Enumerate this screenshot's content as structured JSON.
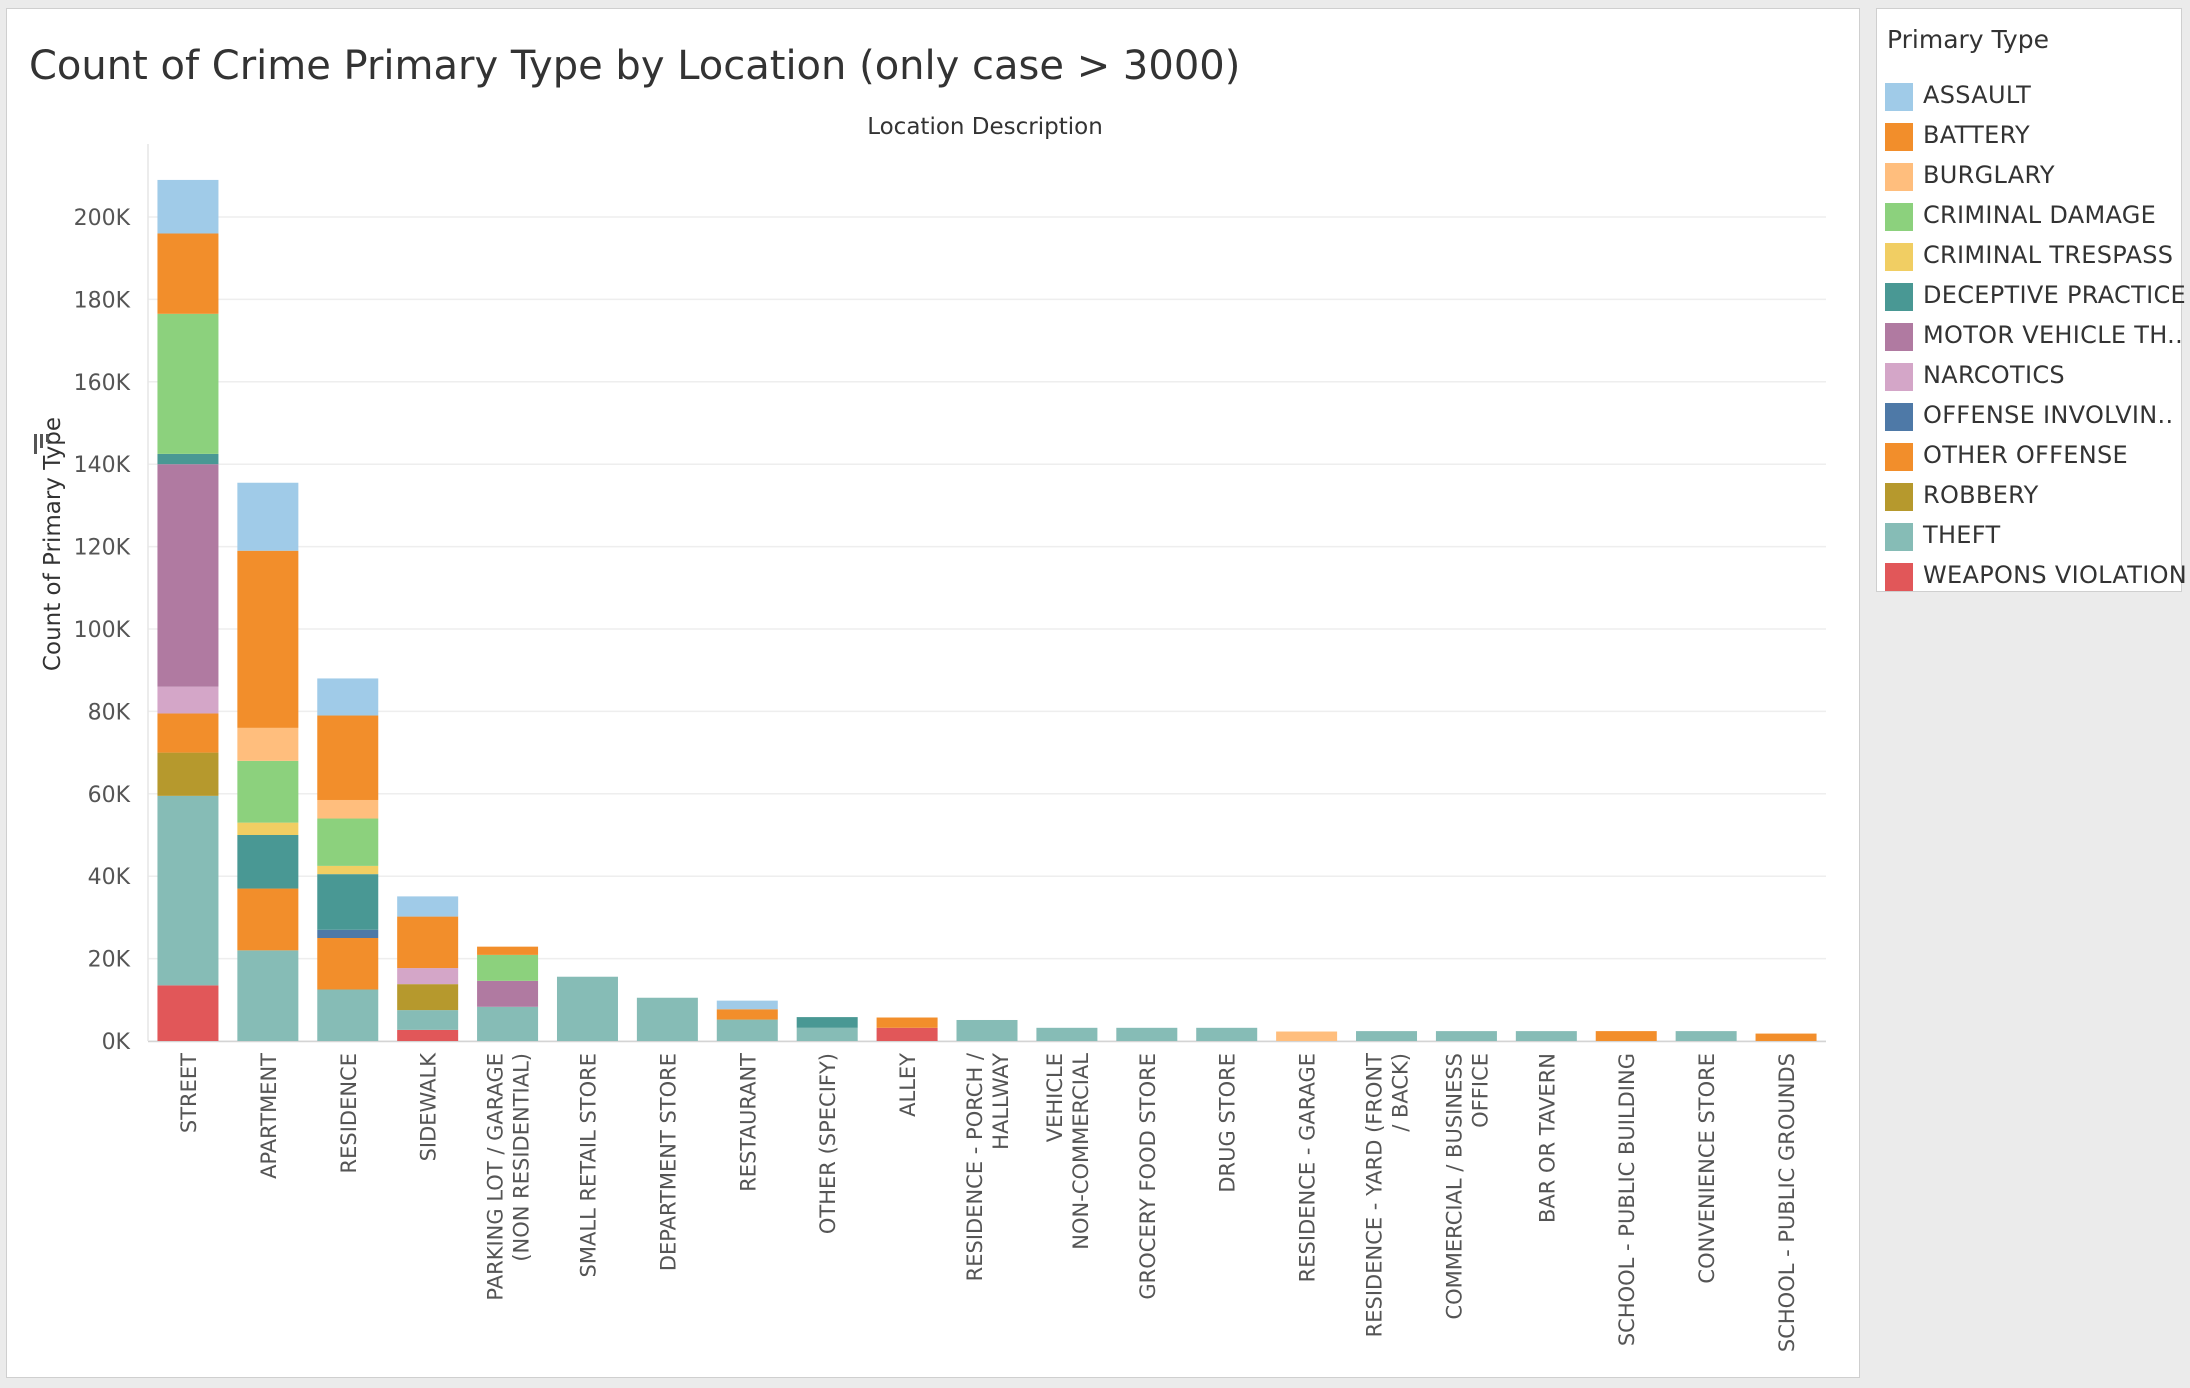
{
  "chart_data": {
    "type": "bar",
    "stacked": true,
    "title": "Count of Crime Primary Type by Location (only case > 3000)",
    "header_label": "Location Description",
    "ylabel": "Count of Primary Type",
    "ylim": [
      0,
      210000
    ],
    "yticks": [
      0,
      20000,
      40000,
      60000,
      80000,
      100000,
      120000,
      140000,
      160000,
      180000,
      200000
    ],
    "ytick_labels": [
      "0K",
      "20K",
      "40K",
      "60K",
      "80K",
      "100K",
      "120K",
      "140K",
      "160K",
      "180K",
      "200K"
    ],
    "grid": true,
    "legend_title": "Primary Type",
    "legend_position": "right",
    "categories": [
      "STREET",
      "APARTMENT",
      "RESIDENCE",
      "SIDEWALK",
      "PARKING LOT / GARAGE (NON RESIDENTIAL)",
      "SMALL RETAIL STORE",
      "DEPARTMENT STORE",
      "RESTAURANT",
      "OTHER (SPECIFY)",
      "ALLEY",
      "RESIDENCE - PORCH / HALLWAY",
      "VEHICLE NON-COMMERCIAL",
      "GROCERY FOOD STORE",
      "DRUG STORE",
      "RESIDENCE - GARAGE",
      "RESIDENCE - YARD (FRONT / BACK)",
      "COMMERCIAL / BUSINESS OFFICE",
      "BAR OR TAVERN",
      "SCHOOL - PUBLIC BUILDING",
      "CONVENIENCE STORE",
      "SCHOOL - PUBLIC GROUNDS"
    ],
    "category_label_lines": [
      [
        "STREET"
      ],
      [
        "APARTMENT"
      ],
      [
        "RESIDENCE"
      ],
      [
        "SIDEWALK"
      ],
      [
        "PARKING LOT / GARAGE",
        "(NON RESIDENTIAL)"
      ],
      [
        "SMALL RETAIL STORE"
      ],
      [
        "DEPARTMENT STORE"
      ],
      [
        "RESTAURANT"
      ],
      [
        "OTHER (SPECIFY)"
      ],
      [
        "ALLEY"
      ],
      [
        "RESIDENCE - PORCH /",
        "HALLWAY"
      ],
      [
        "VEHICLE",
        "NON-COMMERCIAL"
      ],
      [
        "GROCERY FOOD STORE"
      ],
      [
        "DRUG STORE"
      ],
      [
        "RESIDENCE - GARAGE"
      ],
      [
        "RESIDENCE - YARD (FRONT",
        "/ BACK)"
      ],
      [
        "COMMERCIAL / BUSINESS",
        "OFFICE"
      ],
      [
        "BAR OR TAVERN"
      ],
      [
        "SCHOOL - PUBLIC BUILDING"
      ],
      [
        "CONVENIENCE STORE"
      ],
      [
        "SCHOOL - PUBLIC GROUNDS"
      ]
    ],
    "series": [
      {
        "name": "WEAPONS VIOLATION",
        "color": "#e15759",
        "values": [
          13500,
          0,
          0,
          2700,
          0,
          0,
          0,
          0,
          0,
          3200,
          0,
          0,
          0,
          0,
          0,
          0,
          0,
          0,
          0,
          0,
          0
        ]
      },
      {
        "name": "THEFT",
        "color": "#86bcb6",
        "values": [
          46000,
          22000,
          12500,
          4800,
          8300,
          15600,
          10500,
          5200,
          3200,
          0,
          5100,
          3200,
          3200,
          3200,
          0,
          2400,
          2400,
          2400,
          0,
          2400,
          0
        ]
      },
      {
        "name": "ROBBERY",
        "color": "#b6992d",
        "values": [
          10500,
          0,
          0,
          6300,
          0,
          0,
          0,
          0,
          0,
          0,
          0,
          0,
          0,
          0,
          0,
          0,
          0,
          0,
          0,
          0,
          0
        ]
      },
      {
        "name": "OTHER OFFENSE",
        "color": "#f28e2b",
        "values": [
          9500,
          15000,
          12500,
          0,
          0,
          0,
          0,
          0,
          0,
          0,
          0,
          0,
          0,
          0,
          0,
          0,
          0,
          0,
          0,
          0,
          0
        ]
      },
      {
        "name": "OFFENSE INVOLVING CHILDREN",
        "color": "#4e79a7",
        "values": [
          0,
          0,
          2000,
          0,
          0,
          0,
          0,
          0,
          0,
          0,
          0,
          0,
          0,
          0,
          0,
          0,
          0,
          0,
          0,
          0,
          0
        ]
      },
      {
        "name": "NARCOTICS",
        "color": "#d4a6c8",
        "values": [
          6500,
          0,
          0,
          3900,
          0,
          0,
          0,
          0,
          0,
          0,
          0,
          0,
          0,
          0,
          0,
          0,
          0,
          0,
          0,
          0,
          0
        ]
      },
      {
        "name": "MOTOR VEHICLE THEFT",
        "color": "#b07aa1",
        "values": [
          54000,
          0,
          0,
          0,
          6300,
          0,
          0,
          0,
          0,
          0,
          0,
          0,
          0,
          0,
          0,
          0,
          0,
          0,
          0,
          0,
          0
        ]
      },
      {
        "name": "DECEPTIVE PRACTICE",
        "color": "#499894",
        "values": [
          2500,
          13000,
          13500,
          0,
          0,
          0,
          0,
          0,
          2600,
          0,
          0,
          0,
          0,
          0,
          0,
          0,
          0,
          0,
          0,
          0,
          0
        ]
      },
      {
        "name": "CRIMINAL TRESPASS",
        "color": "#f1ce63",
        "values": [
          0,
          3000,
          2000,
          0,
          0,
          0,
          0,
          0,
          0,
          0,
          0,
          0,
          0,
          0,
          0,
          0,
          0,
          0,
          0,
          0,
          0
        ]
      },
      {
        "name": "CRIMINAL DAMAGE",
        "color": "#8cd17d",
        "values": [
          34000,
          15000,
          11500,
          0,
          6300,
          0,
          0,
          0,
          0,
          0,
          0,
          0,
          0,
          0,
          0,
          0,
          0,
          0,
          0,
          0,
          0
        ]
      },
      {
        "name": "BURGLARY",
        "color": "#ffbe7d",
        "values": [
          0,
          8000,
          4500,
          0,
          0,
          0,
          0,
          0,
          0,
          0,
          0,
          0,
          0,
          0,
          2300,
          0,
          0,
          0,
          0,
          0,
          0
        ]
      },
      {
        "name": "BATTERY",
        "color": "#f28e2b",
        "values": [
          19500,
          43000,
          20500,
          12500,
          2000,
          0,
          0,
          2500,
          0,
          2500,
          0,
          0,
          0,
          0,
          0,
          0,
          0,
          0,
          2400,
          0,
          1800
        ]
      },
      {
        "name": "ASSAULT",
        "color": "#a0cbe8",
        "values": [
          13000,
          16500,
          9000,
          4900,
          0,
          0,
          0,
          2100,
          0,
          0,
          0,
          0,
          0,
          0,
          0,
          0,
          0,
          0,
          0,
          0,
          0
        ]
      }
    ]
  },
  "legend_items": [
    {
      "label": "ASSAULT",
      "color": "#a0cbe8"
    },
    {
      "label": "BATTERY",
      "color": "#f28e2b"
    },
    {
      "label": "BURGLARY",
      "color": "#ffbe7d"
    },
    {
      "label": "CRIMINAL DAMAGE",
      "color": "#8cd17d"
    },
    {
      "label": "CRIMINAL TRESPASS",
      "color": "#f1ce63"
    },
    {
      "label": "DECEPTIVE PRACTICE",
      "color": "#499894"
    },
    {
      "label": "MOTOR VEHICLE TH..",
      "color": "#b07aa1"
    },
    {
      "label": "NARCOTICS",
      "color": "#d4a6c8"
    },
    {
      "label": "OFFENSE INVOLVIN..",
      "color": "#4e79a7"
    },
    {
      "label": "OTHER OFFENSE",
      "color": "#f28e2b"
    },
    {
      "label": "ROBBERY",
      "color": "#b6992d"
    },
    {
      "label": "THEFT",
      "color": "#86bcb6"
    },
    {
      "label": "WEAPONS VIOLATION",
      "color": "#e15759"
    }
  ],
  "sort_icon": "sort-descending-icon"
}
